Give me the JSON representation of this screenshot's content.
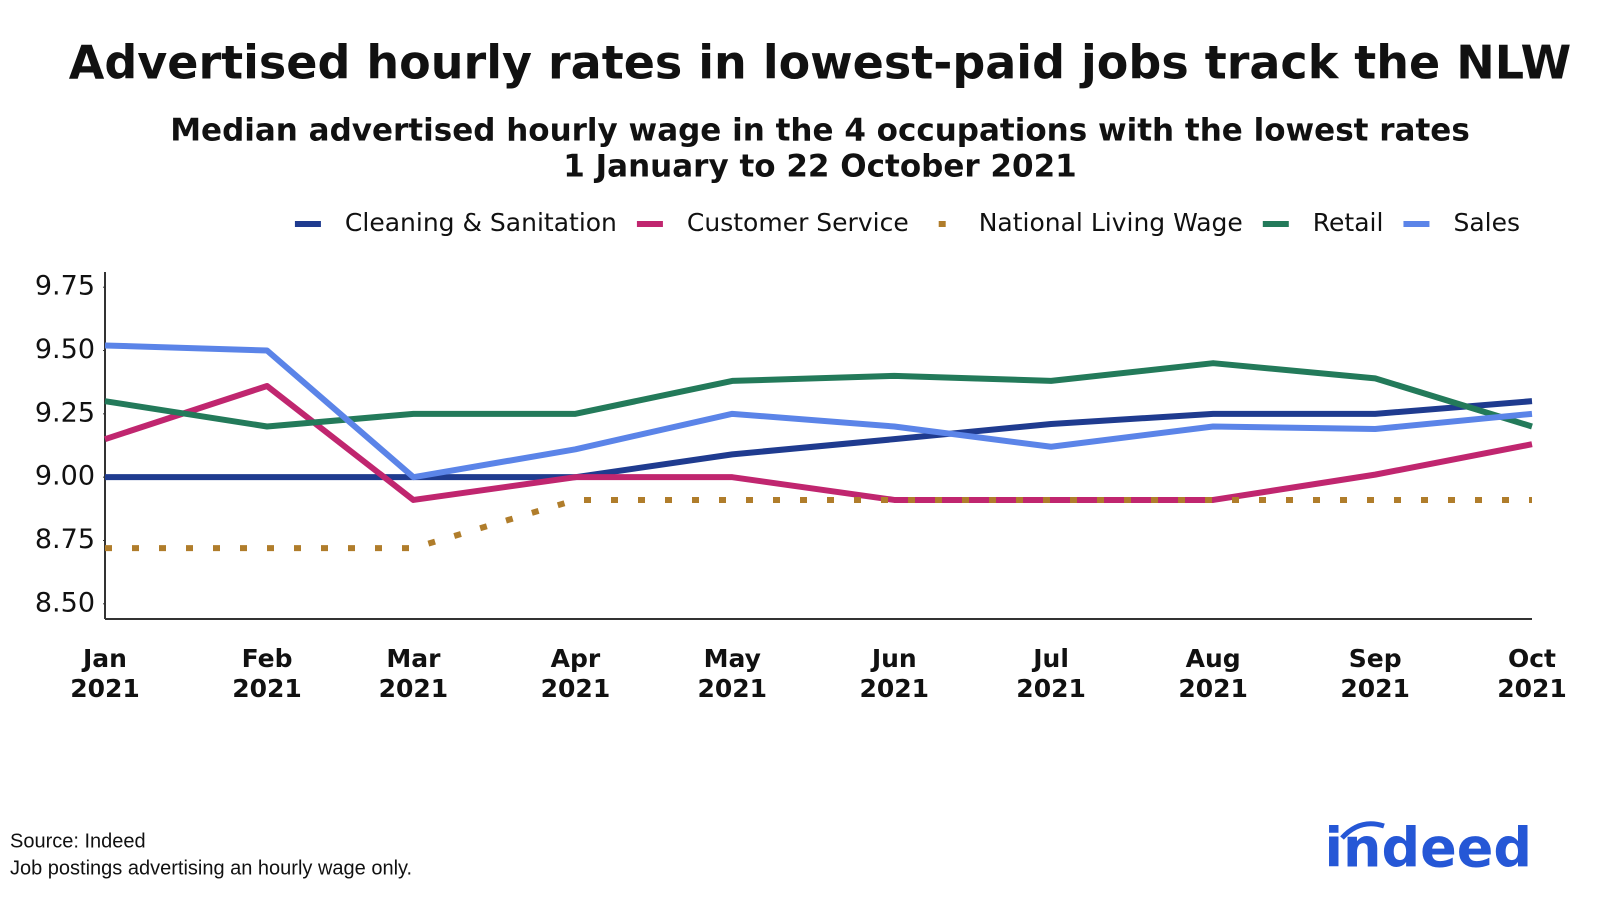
{
  "chart_data": {
    "type": "line",
    "title": "Advertised hourly rates in lowest-paid jobs track the NLW",
    "subtitle": "Median advertised hourly wage in the 4 occupations with the lowest rates",
    "subtitle2": "1 January to 22 October 2021",
    "x": [
      "Jan 2021",
      "Feb 2021",
      "Mar 2021",
      "Apr 2021",
      "May 2021",
      "Jun 2021",
      "Jul 2021",
      "Aug 2021",
      "Sep 2021",
      "Oct 2021"
    ],
    "xlim": [
      "Jan 2021",
      "Oct 2021"
    ],
    "ylim": [
      8.44,
      9.81
    ],
    "yticks": [
      {
        "value": 8.5,
        "label": "8.50"
      },
      8.75,
      {
        "value": 9,
        "label": "9.00"
      },
      9.25,
      {
        "value": 9.5,
        "label": "9.50"
      },
      9.75
    ],
    "legend": "top-right",
    "series": [
      {
        "name": "Cleaning & Sanitation",
        "color": "#1f3b8f",
        "style": "solid",
        "values": [
          9.0,
          9.0,
          9.0,
          9.0,
          9.09,
          9.15,
          9.21,
          9.25,
          9.25,
          9.3
        ]
      },
      {
        "name": "Customer Service",
        "color": "#c0266f",
        "style": "solid",
        "values": [
          9.15,
          9.36,
          8.91,
          9.0,
          9.0,
          8.91,
          8.91,
          8.91,
          9.01,
          9.13
        ]
      },
      {
        "name": "National Living Wage",
        "color": "#b07d2b",
        "style": "dotted",
        "values": [
          8.72,
          8.72,
          8.72,
          8.91,
          8.91,
          8.91,
          8.91,
          8.91,
          8.91,
          8.91
        ]
      },
      {
        "name": "Retail",
        "color": "#237a5a",
        "style": "solid",
        "values": [
          9.3,
          9.2,
          9.25,
          9.25,
          9.38,
          9.4,
          9.38,
          9.45,
          9.39,
          9.2
        ]
      },
      {
        "name": "Sales",
        "color": "#5b84e8",
        "style": "solid",
        "values": [
          9.52,
          9.5,
          9.0,
          9.11,
          9.25,
          9.2,
          9.12,
          9.2,
          9.19,
          9.25
        ]
      }
    ],
    "source": "Source: Indeed",
    "note": "Job postings advertising an hourly wage only.",
    "logo": "indeed"
  }
}
